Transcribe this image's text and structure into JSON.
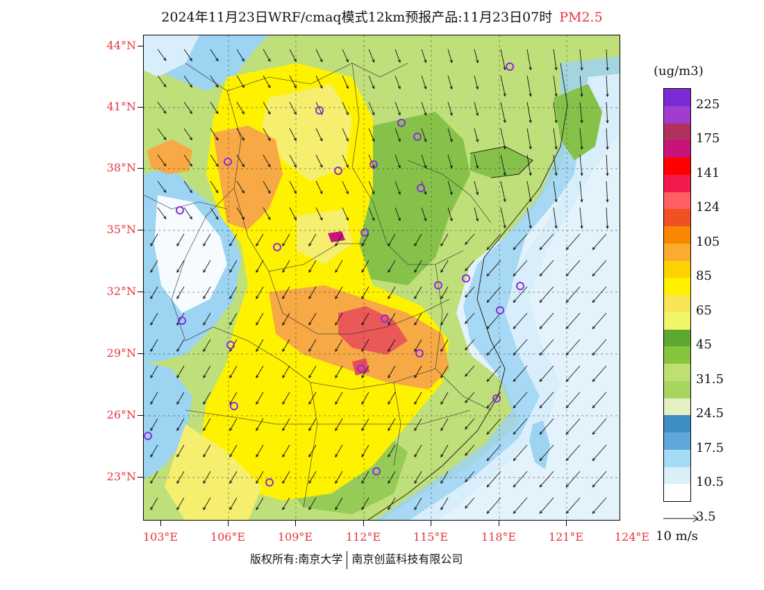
{
  "header": {
    "title": "2024年11月23日WRF/cmaq模式12km预报产品:11月23日07时",
    "pollutant": "PM2.5"
  },
  "map": {
    "lat_labels": [
      "44°N",
      "41°N",
      "38°N",
      "35°N",
      "32°N",
      "29°N",
      "26°N",
      "23°N"
    ],
    "lon_labels": [
      "103°E",
      "106°E",
      "109°E",
      "112°E",
      "115°E",
      "118°E",
      "121°E",
      "124°E"
    ],
    "colors": {
      "sea": "#e4f3fb",
      "clean_light": "#d8eefa",
      "clean_blue": "#9cd4f2",
      "mid_blue": "#4f95c8",
      "green": "#86c24a",
      "light_green": "#bfdf7a",
      "yellow": "#fff200",
      "light_yellow": "#f6ee6e",
      "orange": "#f7a945",
      "red": "#e84a5a"
    }
  },
  "colorbar": {
    "unit": "(ug/m3)",
    "labels": [
      "225",
      "175",
      "141",
      "124",
      "105",
      "85",
      "65",
      "45",
      "31.5",
      "24.5",
      "17.5",
      "10.5",
      "3.5"
    ],
    "colors": [
      "#7b2bd6",
      "#a23cd0",
      "#b0305e",
      "#c8137a",
      "#ff0000",
      "#f21a4c",
      "#ff5f63",
      "#f05022",
      "#f98800",
      "#fbac30",
      "#fcd300",
      "#fff000",
      "#f8e455",
      "#f0f66a",
      "#5ea82f",
      "#87c43e",
      "#bfdf72",
      "#a8d460",
      "#e3f0c2",
      "#3f8dc5",
      "#5fa8db",
      "#a4dbf5",
      "#d9f0fb",
      "#ffffff"
    ]
  },
  "wind_reference": {
    "label": "10 m/s"
  },
  "footer": {
    "copyright": "版权所有:南京大学",
    "company": "南京创蓝科技有限公司"
  }
}
